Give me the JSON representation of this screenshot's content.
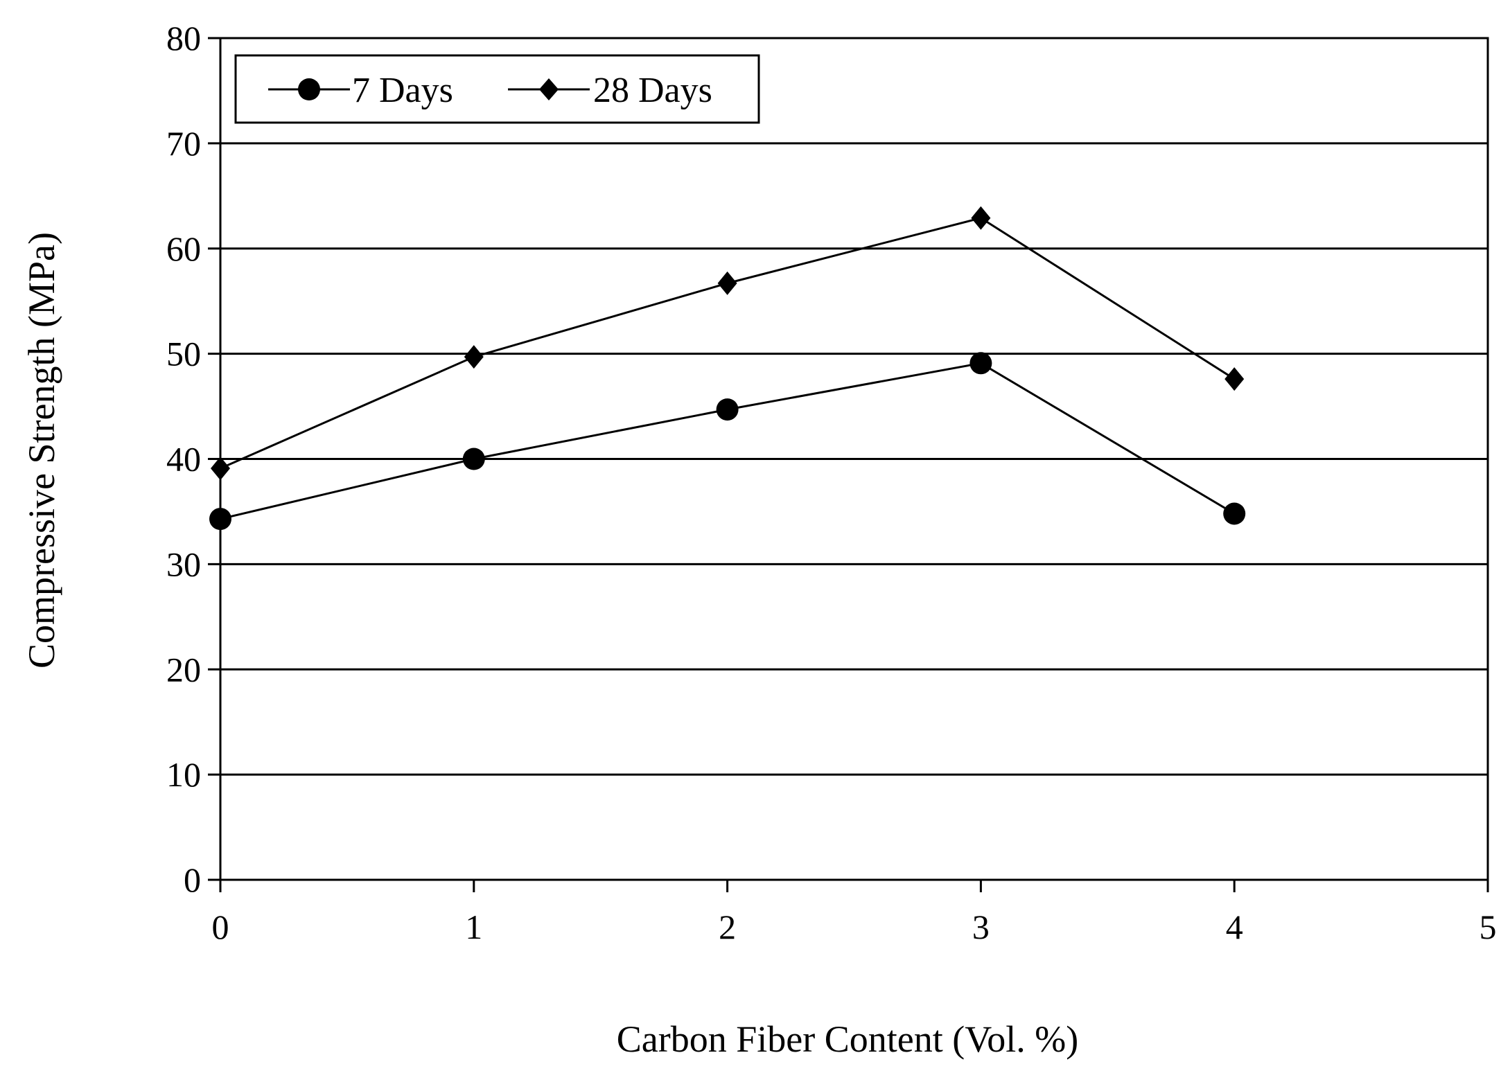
{
  "chart_data": {
    "type": "line",
    "title": "",
    "xlabel": "Carbon Fiber Content (Vol. %)",
    "ylabel": "Compressive Strength (MPa)",
    "xlim": [
      0,
      5
    ],
    "ylim": [
      0,
      80
    ],
    "xticks": [
      0,
      1,
      2,
      3,
      4,
      5
    ],
    "yticks": [
      0,
      10,
      20,
      30,
      40,
      50,
      60,
      70,
      80
    ],
    "grid": "horizontal",
    "legend_position": "top-left",
    "series": [
      {
        "name": "7 Days",
        "marker": "circle",
        "x": [
          0,
          1,
          2,
          3,
          4
        ],
        "values": [
          34.3,
          40.0,
          44.7,
          49.1,
          34.8
        ]
      },
      {
        "name": "28 Days",
        "marker": "diamond",
        "x": [
          0,
          1,
          2,
          3,
          4
        ],
        "values": [
          39.1,
          49.7,
          56.7,
          62.9,
          47.6
        ]
      }
    ],
    "colors": {
      "line": "#000000",
      "grid": "#000000",
      "background": "#ffffff"
    }
  }
}
